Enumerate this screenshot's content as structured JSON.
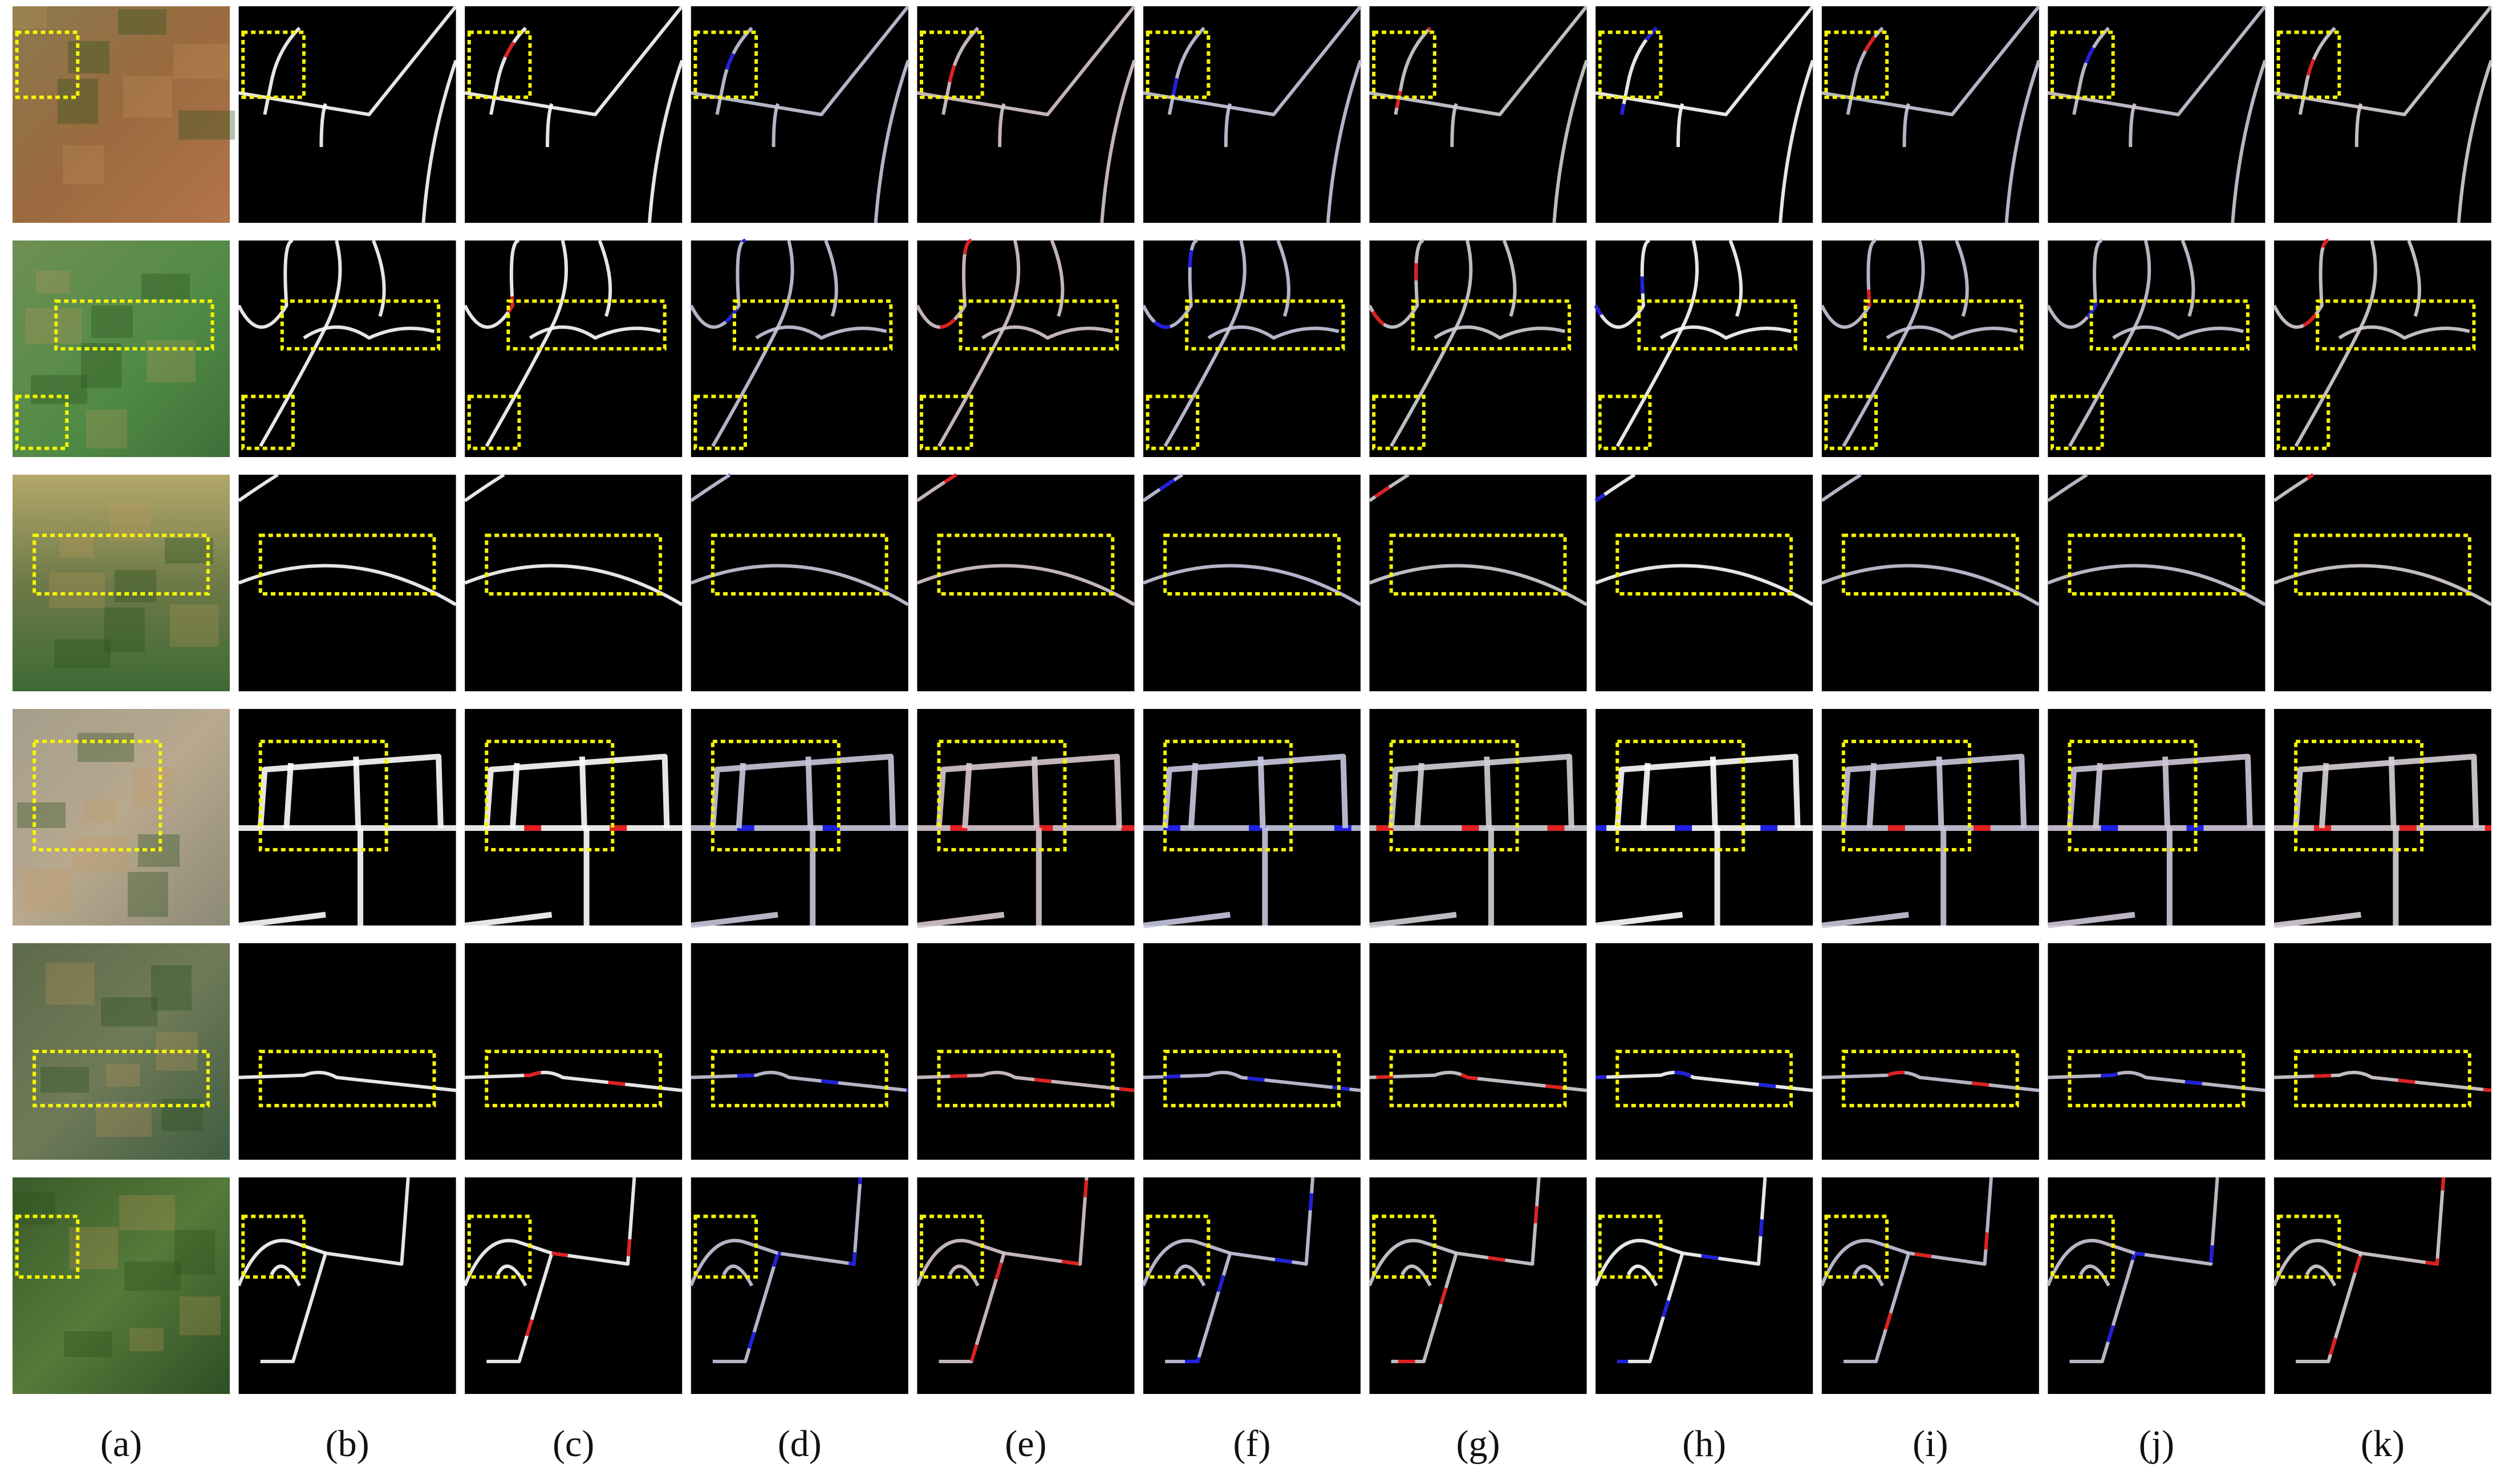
{
  "figure": {
    "columns": [
      "(a)",
      "(b)",
      "(c)",
      "(d)",
      "(e)",
      "(f)",
      "(g)",
      "(h)",
      "(i)",
      "(j)",
      "(k)"
    ]
  }
}
